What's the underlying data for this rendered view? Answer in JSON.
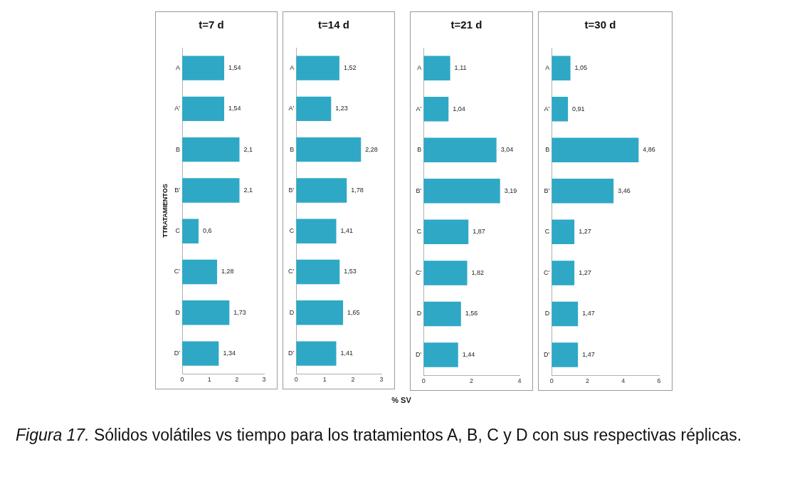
{
  "chart_data": [
    {
      "type": "bar",
      "orientation": "horizontal",
      "title": "t=7 d",
      "ylabel": "TTRATAMIENTOS",
      "categories": [
        "A",
        "A'",
        "B",
        "B'",
        "C",
        "C'",
        "D",
        "D'"
      ],
      "series": [
        {
          "color": "#2fa8c6",
          "values": [
            1.54,
            1.54,
            2.1,
            2.1,
            0.6,
            1.28,
            1.73,
            1.34
          ],
          "value_labels": [
            "1,54",
            "1,54",
            "2,1",
            "2,1",
            "0,6",
            "1,28",
            "1,73",
            "1,34"
          ]
        }
      ],
      "xlim": [
        0,
        3
      ],
      "xticks": [
        0,
        1,
        2,
        3
      ],
      "grid": false,
      "legend": false
    },
    {
      "type": "bar",
      "orientation": "horizontal",
      "title": "t=14 d",
      "xlabel": "% SV",
      "categories": [
        "A",
        "A'",
        "B",
        "B'",
        "C",
        "C'",
        "D",
        "D'"
      ],
      "series": [
        {
          "color": "#2fa8c6",
          "values": [
            1.52,
            1.23,
            2.28,
            1.78,
            1.41,
            1.53,
            1.65,
            1.41
          ],
          "value_labels": [
            "1,52",
            "1,23",
            "2,28",
            "1,78",
            "1,41",
            "1,53",
            "1,65",
            "1,41"
          ]
        }
      ],
      "xlim": [
        0,
        3
      ],
      "xticks": [
        0,
        1,
        2,
        3
      ],
      "grid": false,
      "legend": false
    },
    {
      "type": "bar",
      "orientation": "horizontal",
      "title": "t=21 d",
      "categories": [
        "A",
        "A'",
        "B",
        "B'",
        "C",
        "C'",
        "D",
        "D'"
      ],
      "series": [
        {
          "color": "#2fa8c6",
          "values": [
            1.11,
            1.04,
            3.04,
            3.19,
            1.87,
            1.82,
            1.56,
            1.44
          ],
          "value_labels": [
            "1,11",
            "1,04",
            "3,04",
            "3,19",
            "1,87",
            "1,82",
            "1,56",
            "1,44"
          ]
        }
      ],
      "xlim": [
        0,
        4
      ],
      "xticks": [
        0,
        2,
        4
      ],
      "grid": false,
      "legend": false
    },
    {
      "type": "bar",
      "orientation": "horizontal",
      "title": "t=30 d",
      "categories": [
        "A",
        "A'",
        "B",
        "B'",
        "C",
        "C'",
        "D",
        "D'"
      ],
      "series": [
        {
          "color": "#2fa8c6",
          "values": [
            1.05,
            0.91,
            4.86,
            3.46,
            1.27,
            1.27,
            1.47,
            1.47
          ],
          "value_labels": [
            "1,05",
            "0,91",
            "4,86",
            "3,46",
            "1,27",
            "1,27",
            "1,47",
            "1,47"
          ]
        }
      ],
      "xlim": [
        0,
        6
      ],
      "xticks": [
        0,
        2,
        4,
        6
      ],
      "grid": false,
      "legend": false
    },
    {
      "type": "other",
      "annotations": [
        "Figura 17.",
        "Sólidos volátiles vs tiempo para los tratamientos A, B, C y D con sus respectivas réplicas."
      ]
    }
  ]
}
